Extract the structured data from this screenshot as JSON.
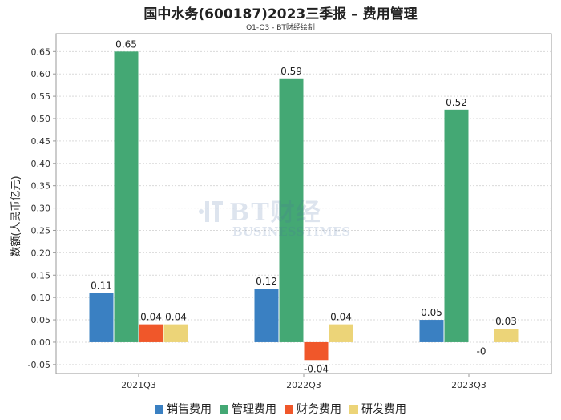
{
  "chart_data": {
    "type": "bar",
    "title": "国中水务(600187)2023三季报 – 费用管理",
    "subtitle": "Q1-Q3 - BT财经绘制",
    "ylabel": "数额(人民币亿元)",
    "xlabel": "",
    "categories": [
      "2021Q3",
      "2022Q3",
      "2023Q3"
    ],
    "ylim": [
      -0.07,
      0.69
    ],
    "yticks": [
      -0.05,
      0.0,
      0.05,
      0.1,
      0.15,
      0.2,
      0.25,
      0.3,
      0.35,
      0.4,
      0.45,
      0.5,
      0.55,
      0.6,
      0.65
    ],
    "grid": true,
    "legend_position": "bottom",
    "series": [
      {
        "name": "销售费用",
        "color": "#3a80c2",
        "values": [
          0.11,
          0.12,
          0.05
        ],
        "labels": [
          "0.11",
          "0.12",
          "0.05"
        ]
      },
      {
        "name": "管理费用",
        "color": "#44a874",
        "values": [
          0.65,
          0.59,
          0.52
        ],
        "labels": [
          "0.65",
          "0.59",
          "0.52"
        ]
      },
      {
        "name": "财务费用",
        "color": "#f0572a",
        "values": [
          0.04,
          -0.04,
          -0.001
        ],
        "labels": [
          "0.04",
          "-0.04",
          "-0"
        ]
      },
      {
        "name": "研发费用",
        "color": "#ecd478",
        "values": [
          0.04,
          0.04,
          0.03
        ],
        "labels": [
          "0.04",
          "0.04",
          "0.03"
        ]
      }
    ]
  },
  "watermark": {
    "main": "BT财经",
    "sub": "BUSINESSTIMES"
  }
}
